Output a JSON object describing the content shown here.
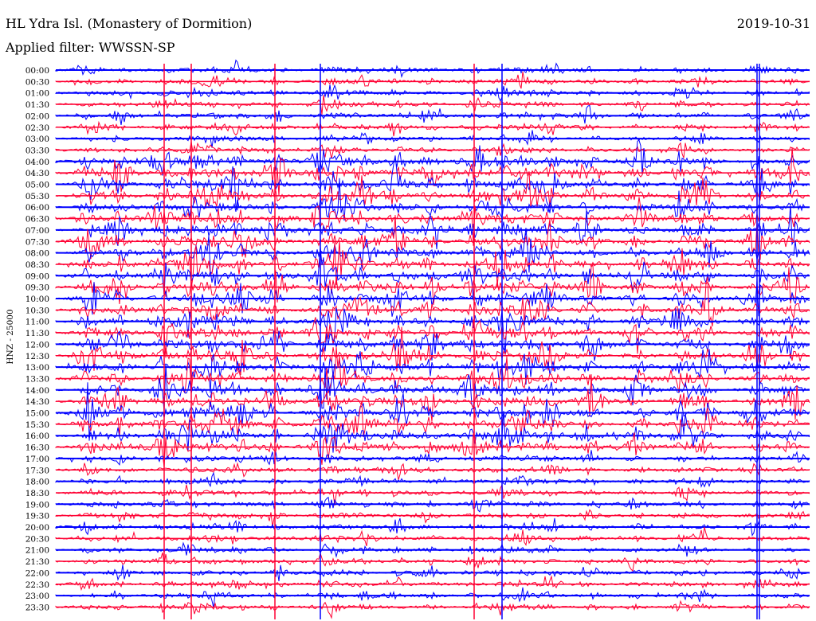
{
  "header": {
    "station": "HL Ydra Isl. (Monastery of Dormition)",
    "date": "2019-10-31",
    "filter": "Applied filter: WWSSN-SP"
  },
  "chart_data": {
    "type": "line",
    "title": "HL Ydra Isl. (Monastery of Dormition)",
    "ylabel": "HNZ - 25000",
    "rows": [
      "00:00",
      "00:30",
      "01:00",
      "01:30",
      "02:00",
      "02:30",
      "03:00",
      "03:30",
      "04:00",
      "04:30",
      "05:00",
      "05:30",
      "06:00",
      "06:30",
      "07:00",
      "07:30",
      "08:00",
      "08:30",
      "09:00",
      "09:30",
      "10:00",
      "10:30",
      "11:00",
      "11:30",
      "12:00",
      "12:30",
      "13:00",
      "13:30",
      "14:00",
      "14:30",
      "15:00",
      "15:30",
      "16:00",
      "16:30",
      "17:00",
      "17:30",
      "18:00",
      "18:30",
      "19:00",
      "19:30",
      "20:00",
      "20:30",
      "21:00",
      "21:30",
      "22:00",
      "22:30",
      "23:00",
      "23:30"
    ],
    "trace_colors": [
      "#0000ff",
      "#ff0033"
    ],
    "grid": false
  }
}
